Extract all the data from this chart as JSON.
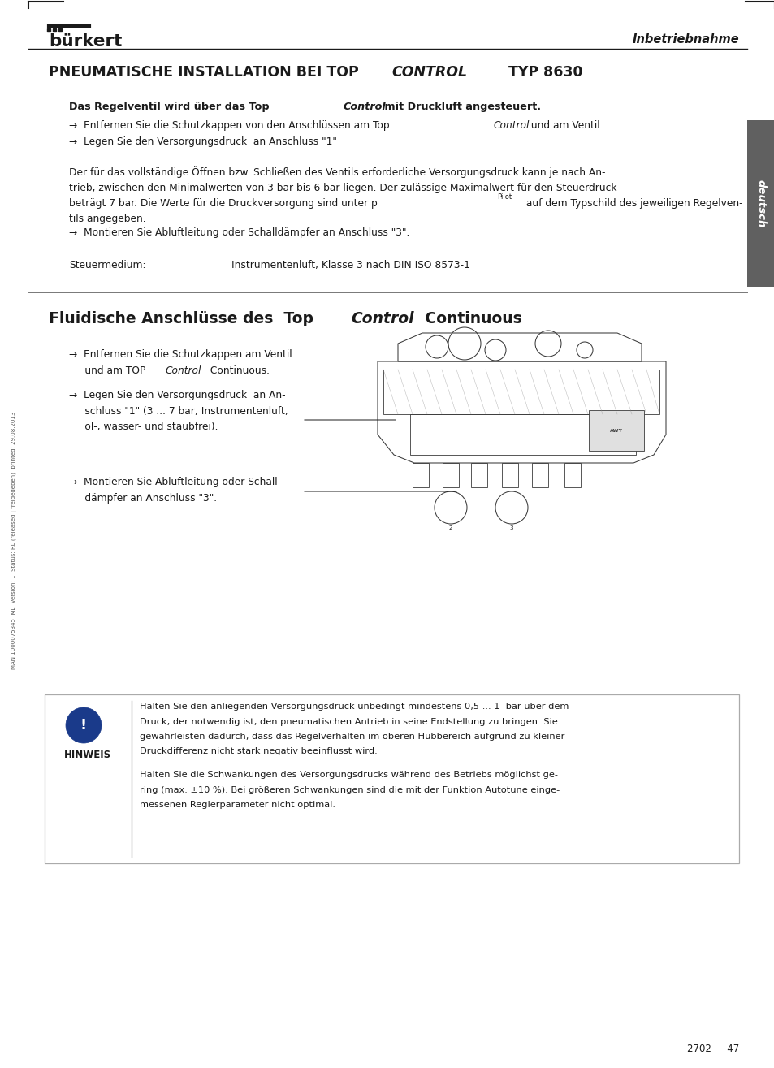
{
  "bg_color": "#ffffff",
  "page_width": 9.54,
  "page_height": 13.15,
  "text_color": "#1a1a1a",
  "sidebar_bg": "#606060",
  "deutsch_text": "deutsch",
  "logo_text": "bürkert",
  "inbetriebnahme_text": "Inbetriebnahme",
  "main_title_1": "PNEUMATISCHE INSTALLATION BEI TOP",
  "main_title_2": "CONTROL",
  "main_title_3": " TYP 8630",
  "bold_head_1": "Das Regelventil wird über das Top",
  "bold_head_2": "Control",
  "bold_head_3": " mit Druckluft angesteuert.",
  "b1_1": "→  Entfernen Sie die Schutzkappen von den Anschlüssen am Top",
  "b1_2": "Control",
  "b1_3": " und am Ventil",
  "b2": "→  Legen Sie den Versorgungsdruck  an Anschluss \"1\"",
  "para1": "Der für das vollständige Öffnen bzw. Schließen des Ventils erforderliche Versorgungsdruck kann je nach An-",
  "para2": "trieb, zwischen den Minimalwerten von 3 bar bis 6 bar liegen. Der zulässige Maximalwert für den Steuerdruck",
  "para3a": "beträgt 7 bar. Die Werte für die Druckversorgung sind unter p",
  "para3sub": "Pilot",
  "para3b": " auf dem Typschild des jeweiligen Regelven-",
  "para4": "tils angegeben.",
  "b3": "→  Montieren Sie Abluftleitung oder Schalldämpfer an Anschluss \"3\".",
  "steuer_label": "Steuermedium:",
  "steuer_value": "Instrumentenluft, Klasse 3 nach DIN ISO 8573-1",
  "sec2_title_1": "Fluidische Anschlüsse des  Top",
  "sec2_title_2": "Control",
  "sec2_title_3": " Continuous",
  "s2b1a": "→  Entfernen Sie die Schutzkappen am Ventil",
  "s2b1b": "     und am TOP",
  "s2b1b_i": "Control",
  "s2b1b_r": " Continuous.",
  "s2b2a": "→  Legen Sie den Versorgungsdruck  an An-",
  "s2b2b": "     schluss \"1\" (3 ... 7 bar; Instrumentenluft,",
  "s2b2c": "     öl-, wasser- und staubfrei).",
  "s2b3a": "→  Montieren Sie Abluftleitung oder Schall-",
  "s2b3b": "     dämpfer an Anschluss \"3\".",
  "hinweis_label": "HINWEIS",
  "h1": "Halten Sie den anliegenden Versorgungsdruck unbedingt mindestens 0,5 ... 1  bar über dem",
  "h2": "Druck, der notwendig ist, den pneumatischen Antrieb in seine Endstellung zu bringen. Sie",
  "h3": "gewährleisten dadurch, dass das Regelverhalten im oberen Hubbereich aufgrund zu kleiner",
  "h4": "Druckdifferenz nicht stark negativ beeinflusst wird.",
  "h5": "Halten Sie die Schwankungen des Versorgungsdrucks während des Betriebs möglichst ge-",
  "h6": "ring (max. ±10 %). Bei größeren Schwankungen sind die mit der Funktion Autotune einge-",
  "h7": "messenen Reglerparameter nicht optimal.",
  "footer": "2702  -  47",
  "sidebar_rotated": "MAN 1000075345  ML  Version: 1  Status: RL (released | freigegeben)  printed: 29.08.2013"
}
